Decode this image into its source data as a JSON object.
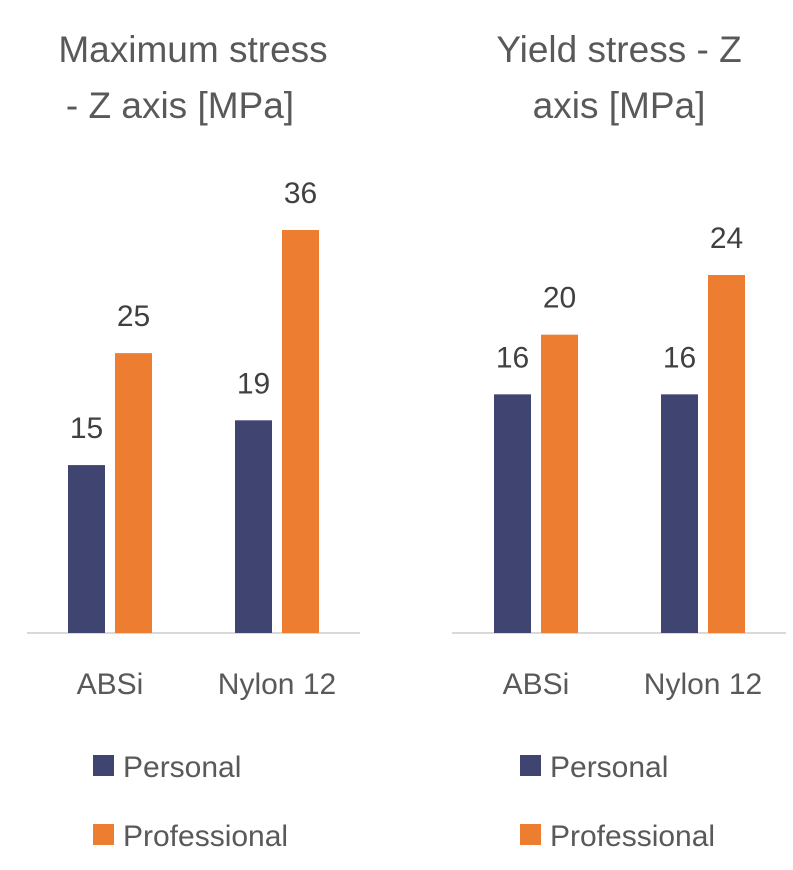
{
  "colors": {
    "personal": "#3f4570",
    "professional": "#ed7d31",
    "axis": "#d9d9d9"
  },
  "chart_data": [
    {
      "type": "bar",
      "title": "Maximum stress - Z axis [MPa]",
      "title_lines": [
        "Maximum stress",
        "- Z axis [MPa]"
      ],
      "categories": [
        "ABSi",
        "Nylon 12"
      ],
      "series": [
        {
          "name": "Personal",
          "values": [
            15,
            19
          ]
        },
        {
          "name": "Professional",
          "values": [
            25,
            36
          ]
        }
      ],
      "xlabel": "",
      "ylabel": "",
      "ylim": [
        0,
        36
      ],
      "grid": false,
      "legend": "bottom",
      "data_labels": true
    },
    {
      "type": "bar",
      "title": "Yield stress - Z axis [MPa]",
      "title_lines": [
        "Yield stress - Z",
        "axis [MPa]"
      ],
      "categories": [
        "ABSi",
        "Nylon 12"
      ],
      "series": [
        {
          "name": "Personal",
          "values": [
            16,
            16
          ]
        },
        {
          "name": "Professional",
          "values": [
            20,
            24
          ]
        }
      ],
      "xlabel": "",
      "ylabel": "",
      "ylim": [
        0,
        24
      ],
      "grid": false,
      "legend": "bottom",
      "data_labels": true
    }
  ]
}
